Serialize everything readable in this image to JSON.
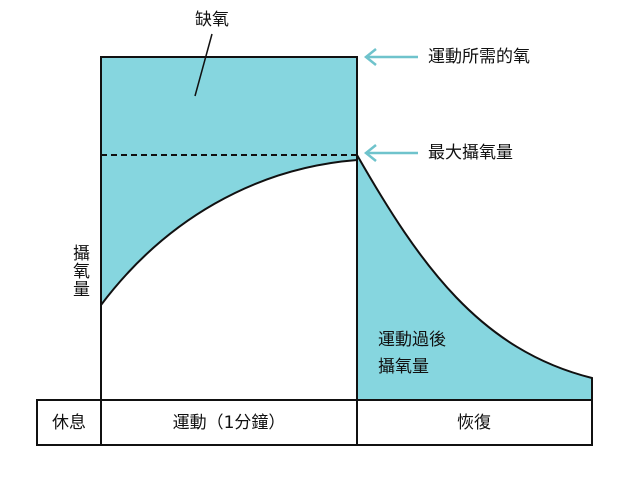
{
  "labels": {
    "deficit": "缺氧",
    "required": "運動所需的氧",
    "max": "最大攝氧量",
    "uptake": "攝氧量",
    "post": [
      "運動過後",
      "攝氧量"
    ]
  },
  "phases": [
    "休息",
    "運動（1分鐘）",
    "恢復"
  ]
}
